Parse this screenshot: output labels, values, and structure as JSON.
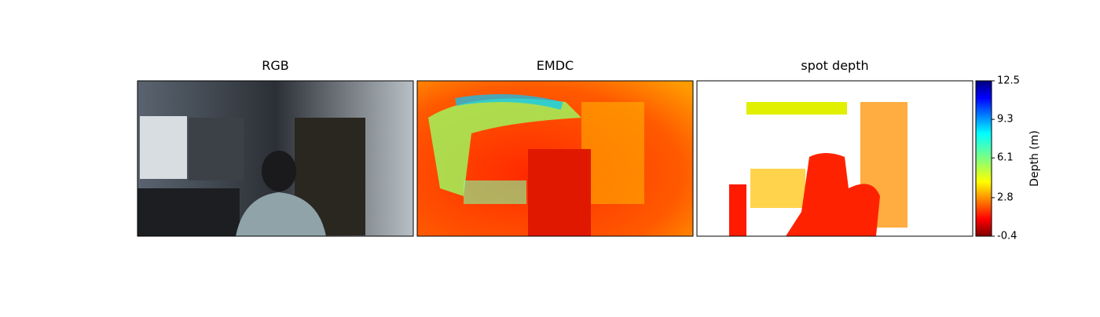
{
  "panels": [
    {
      "title": "RGB"
    },
    {
      "title": "EMDC"
    },
    {
      "title": "spot depth"
    }
  ],
  "colorbar": {
    "label": "Depth (m)",
    "colormap": "jet_r",
    "lim": [
      -0.4,
      12.5
    ],
    "ticks": [
      12.5,
      9.3,
      6.1,
      2.8,
      -0.4
    ]
  }
}
